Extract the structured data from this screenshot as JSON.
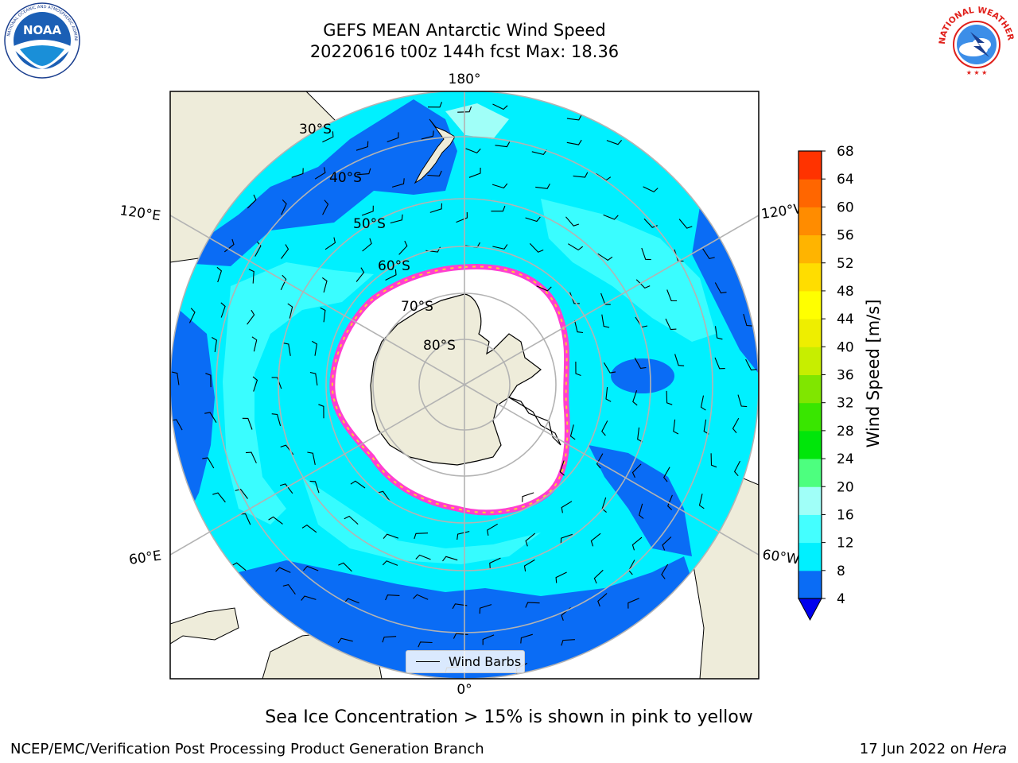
{
  "header": {
    "title_line1": "GEFS MEAN Antarctic Wind Speed",
    "title_line2": "20220616 t00z 144h fcst   Max: 18.36"
  },
  "logos": {
    "left": {
      "icon": "noaa-logo",
      "text": "NOAA",
      "ring_text": "NATIONAL OCEANIC AND ATMOSPHERIC ADMINISTRATION · U.S. DEPARTMENT OF COMMERCE"
    },
    "right": {
      "icon": "nws-logo",
      "ring_text": "NATIONAL WEATHER SERVICE"
    }
  },
  "map": {
    "projection": "south-polar-stereographic",
    "longitude_labels": [
      "180°",
      "120°E",
      "120°W",
      "60°E",
      "60°W",
      "0°"
    ],
    "latitude_labels": [
      "30°S",
      "40°S",
      "50°S",
      "60°S",
      "70°S",
      "80°S"
    ],
    "legend_label": "Wind Barbs",
    "colors": {
      "land": "#eeecda",
      "sea_ice": "#ffffff",
      "wind_4_8": "#0a6cf5",
      "wind_8_12": "#00f0ff",
      "wind_12_16": "#44ffff",
      "ice_edge": "#ff3fd0",
      "ice_edge_inner": "#ffcc33",
      "grid": "#b3b3b3"
    }
  },
  "colorbar": {
    "label": "Wind Speed [m/s]",
    "ticks": [
      "4",
      "8",
      "12",
      "16",
      "20",
      "24",
      "28",
      "32",
      "36",
      "40",
      "44",
      "48",
      "52",
      "56",
      "60",
      "64",
      "68"
    ],
    "colors": [
      "#0a6cf5",
      "#00f0ff",
      "#44ffff",
      "#a0fff8",
      "#4dff7f",
      "#00e60a",
      "#39e600",
      "#80e600",
      "#c7ee00",
      "#eeee00",
      "#ffff00",
      "#ffdd00",
      "#ffb400",
      "#ff8c00",
      "#ff6600",
      "#ff3300",
      "#ff0000"
    ],
    "extend": "min",
    "extend_color": "#0000ee"
  },
  "caption": "Sea Ice Concentration > 15% is shown in pink to yellow",
  "footer": {
    "left": "NCEP/EMC/Verification Post Processing Product Generation Branch",
    "right_date": "17 Jun 2022 on",
    "right_host": "Hera"
  }
}
